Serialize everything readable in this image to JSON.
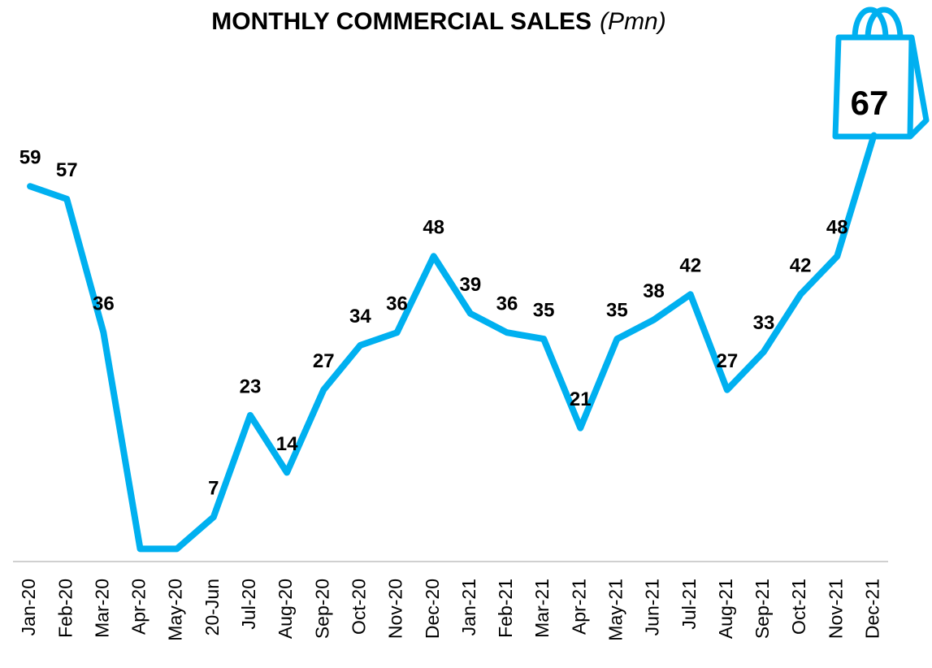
{
  "chart_data": {
    "type": "line",
    "title": "MONTHLY COMMERCIAL SALES",
    "subtitle": "(Pmn)",
    "categories": [
      "Jan-20",
      "Feb-20",
      "Mar-20",
      "Apr-20",
      "May-20",
      "20-Jun",
      "Jul-20",
      "Aug-20",
      "Sep-20",
      "Oct-20",
      "Nov-20",
      "Dec-20",
      "Jan-21",
      "Feb-21",
      "Mar-21",
      "Apr-21",
      "May-21",
      "Jun-21",
      "Jul-21",
      "Aug-21",
      "Sep-21",
      "Oct-21",
      "Nov-21",
      "Dec-21"
    ],
    "series": [
      {
        "name": "Commercial Sales",
        "color": "#00b0f0",
        "values": [
          59,
          57,
          36,
          2,
          2,
          7,
          23,
          14,
          27,
          34,
          36,
          48,
          39,
          36,
          35,
          21,
          35,
          38,
          42,
          27,
          33,
          42,
          48,
          67
        ],
        "value_labels": [
          "59",
          "57",
          "36",
          null,
          null,
          "7",
          "23",
          "14",
          "27",
          "34",
          "36",
          "48",
          "39",
          "36",
          "35",
          "21",
          "35",
          "38",
          "42",
          "27",
          "33",
          "42",
          "48",
          "67"
        ]
      }
    ],
    "ylim": [
      0,
      75
    ],
    "grid": false,
    "legend": false
  }
}
